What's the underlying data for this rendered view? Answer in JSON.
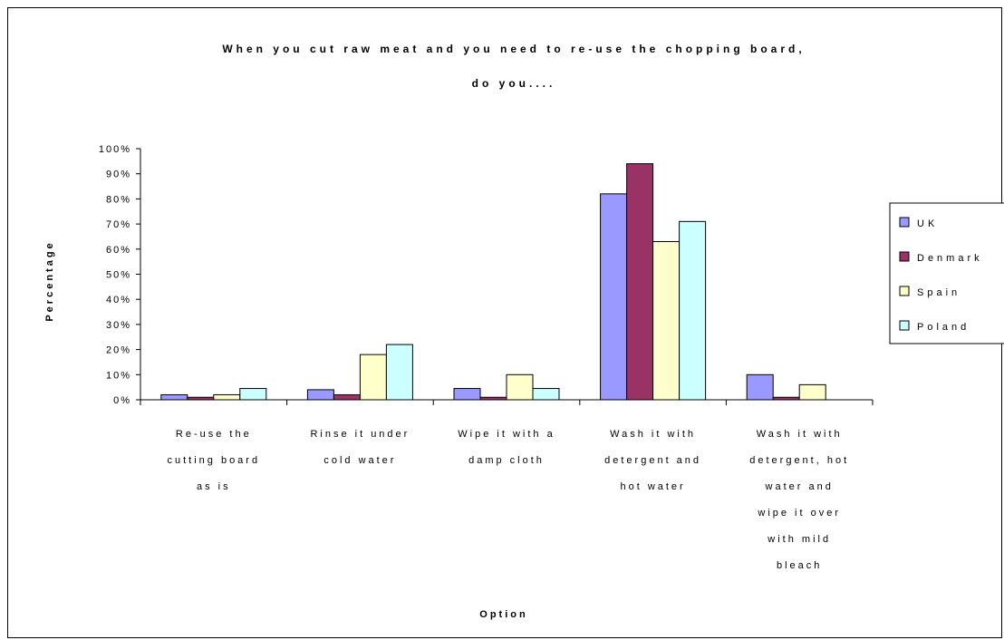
{
  "chart_data": {
    "type": "bar",
    "title_lines": [
      "When you cut raw meat and you need to re-use the chopping board,",
      "do you...."
    ],
    "xlabel": "Option",
    "ylabel": "Percentage",
    "ylim": [
      0,
      100
    ],
    "y_ticks": [
      "0%",
      "10%",
      "20%",
      "30%",
      "40%",
      "50%",
      "60%",
      "70%",
      "80%",
      "90%",
      "100%"
    ],
    "categories": [
      [
        "Re-use the",
        "cutting board",
        "as is"
      ],
      [
        "Rinse it under",
        "cold water"
      ],
      [
        "Wipe it with a",
        "damp cloth"
      ],
      [
        "Wash it with",
        "detergent and",
        "hot water"
      ],
      [
        "Wash it with",
        "detergent, hot",
        "water and",
        "wipe it over",
        "with mild",
        "bleach"
      ]
    ],
    "series": [
      {
        "name": "UK",
        "color": "#9999ff",
        "values": [
          2,
          4,
          4.5,
          82,
          10
        ]
      },
      {
        "name": "Denmark",
        "color": "#993366",
        "values": [
          1,
          2,
          1,
          94,
          1
        ]
      },
      {
        "name": "Spain",
        "color": "#ffffcc",
        "values": [
          2,
          18,
          10,
          63,
          6
        ]
      },
      {
        "name": "Poland",
        "color": "#ccffff",
        "values": [
          4.5,
          22,
          4.5,
          71,
          0
        ]
      }
    ],
    "grid": false,
    "legend_position": "right"
  }
}
